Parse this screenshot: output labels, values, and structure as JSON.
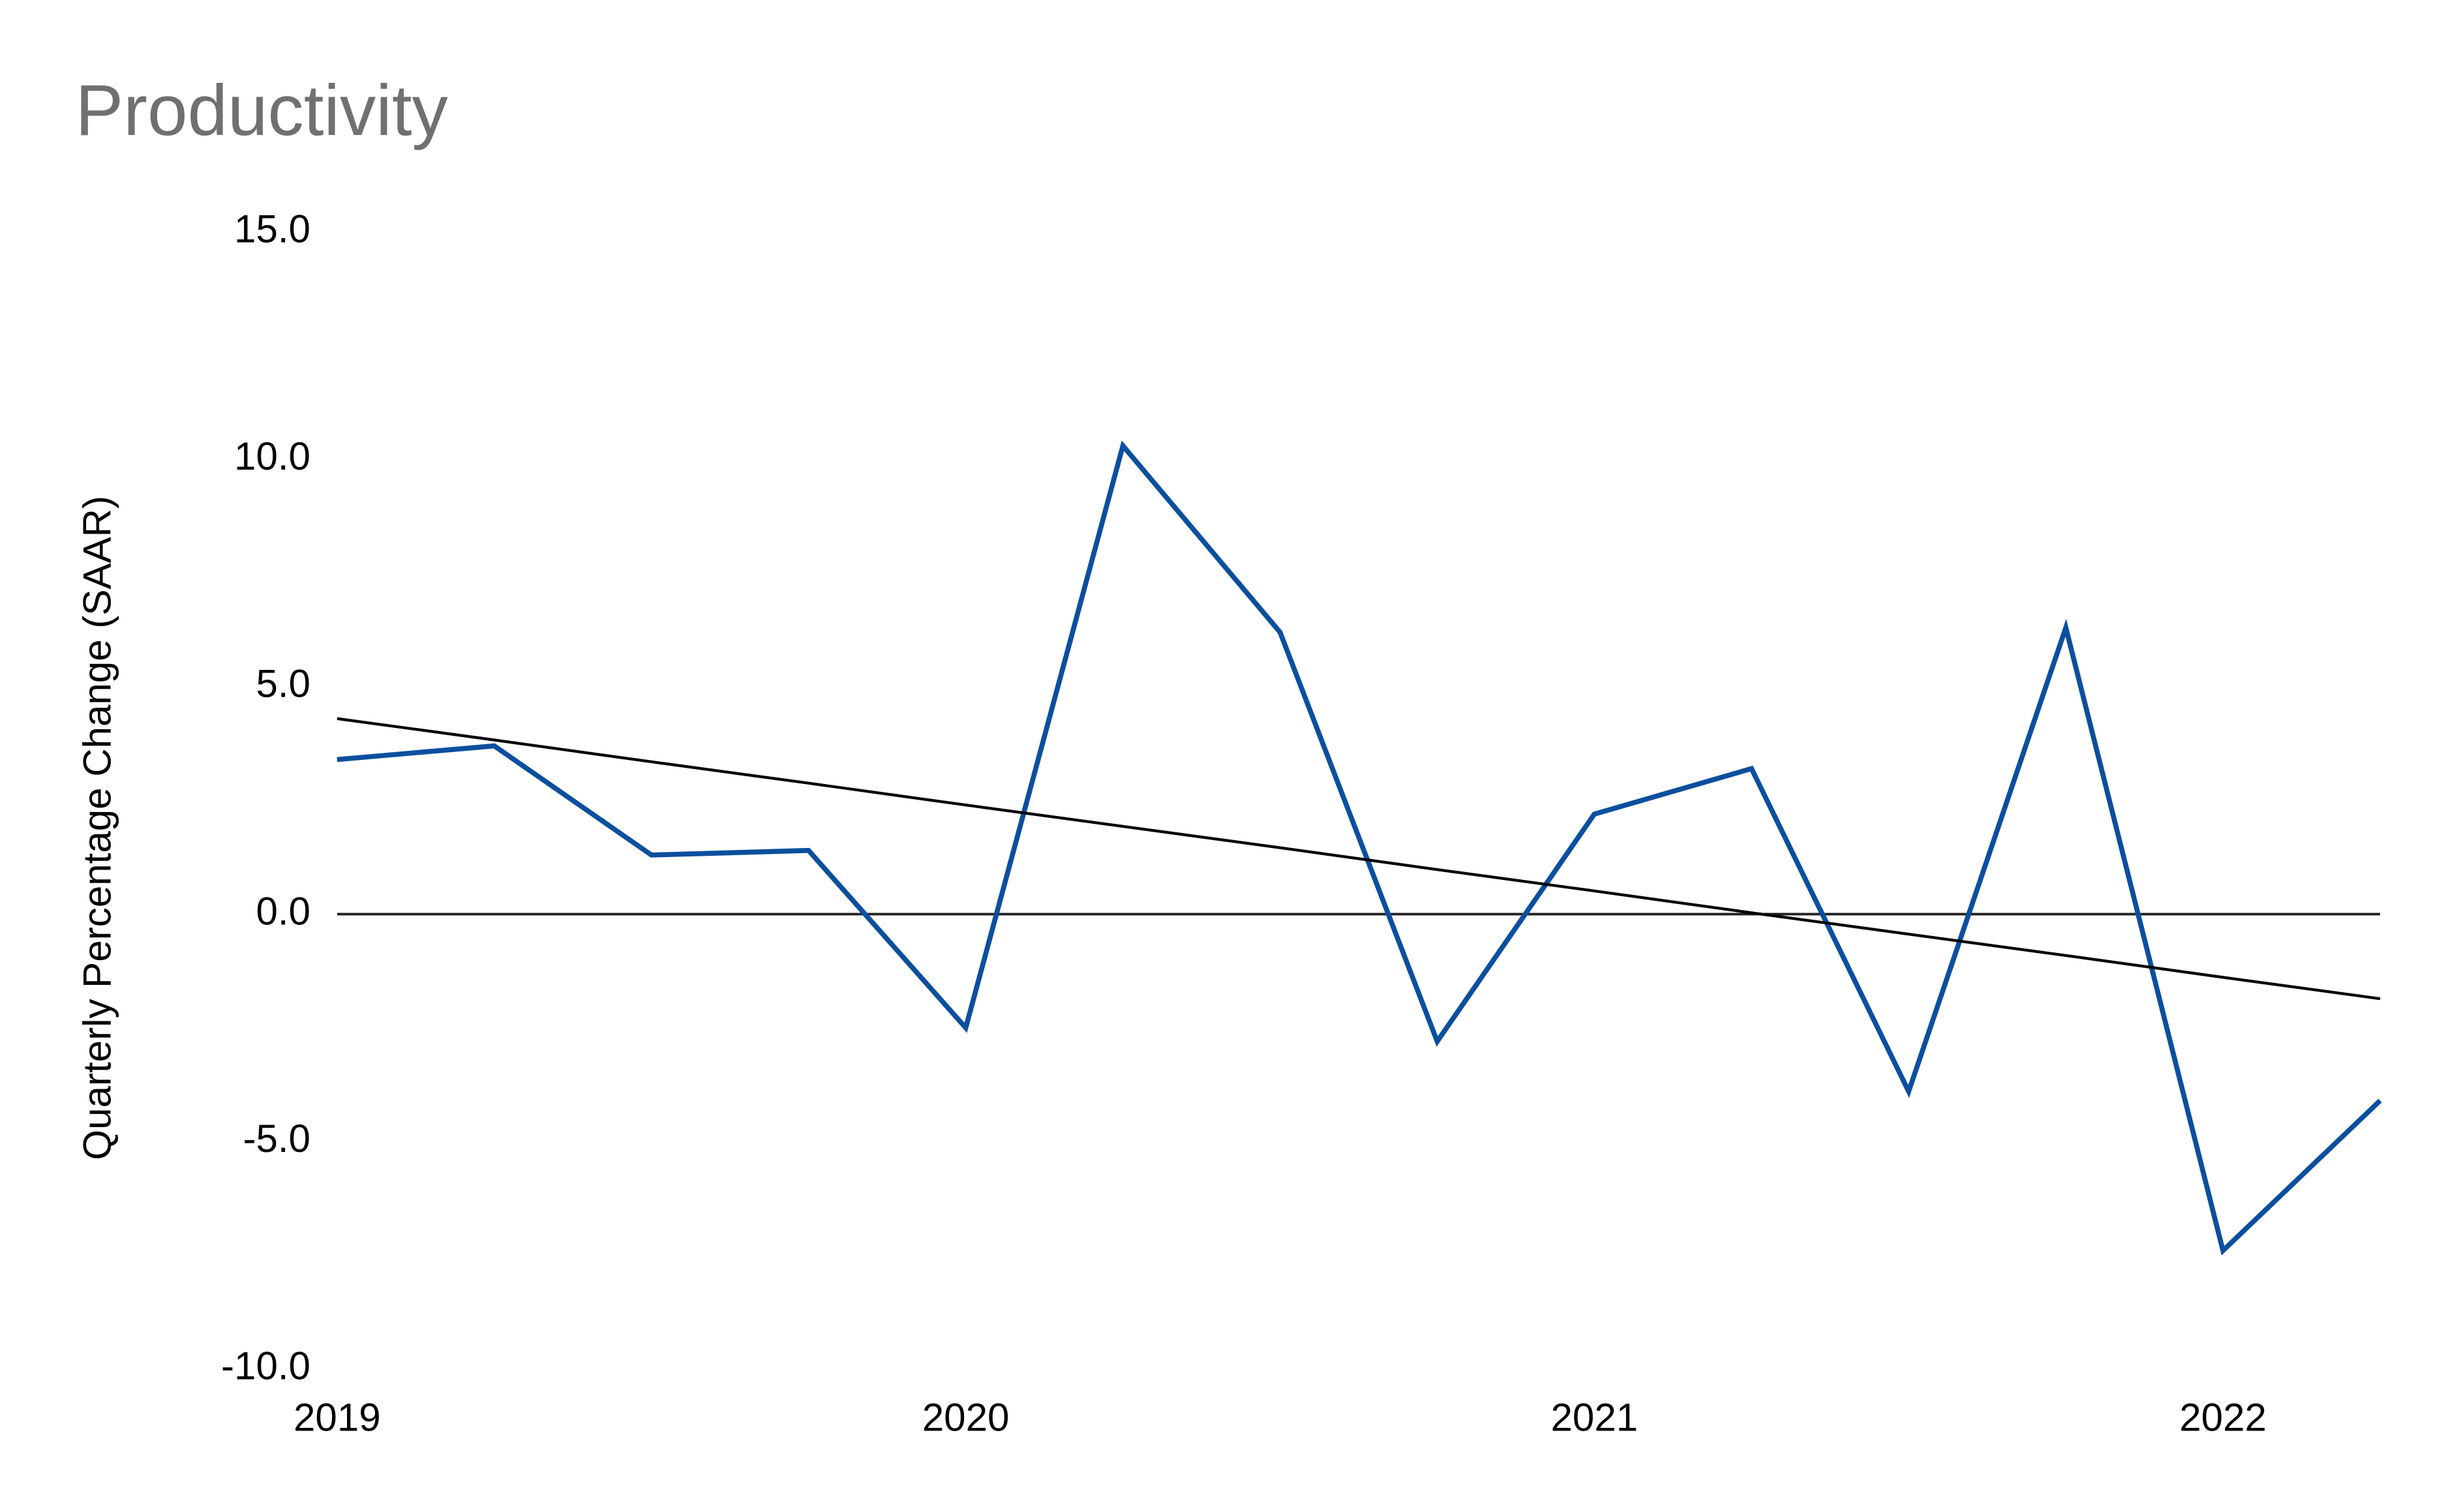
{
  "chart_data": {
    "type": "line",
    "title": "Productivity",
    "y_label": "Quarterly Percentage Change (SAAR)",
    "categories": [
      "2019",
      null,
      null,
      null,
      "2020",
      null,
      null,
      null,
      "2021",
      null,
      null,
      null,
      "2022",
      null
    ],
    "series": [
      {
        "color": "#0b4f9e",
        "width": 3.2,
        "values": [
          3.4,
          3.7,
          1.3,
          1.4,
          -2.5,
          10.3,
          6.2,
          -2.8,
          2.2,
          3.2,
          -3.9,
          6.3,
          -7.4,
          -4.1
        ]
      },
      {
        "color": "#000000",
        "width": 1.8,
        "values": [
          4.3,
          3.83,
          3.35,
          2.88,
          2.4,
          1.93,
          1.46,
          0.98,
          0.51,
          0.03,
          -0.44,
          -0.91,
          -1.39,
          -1.86
        ]
      }
    ],
    "ylim": [
      -10,
      15
    ],
    "yticks": [
      {
        "value": -10,
        "label": "-10.0"
      },
      {
        "value": -5,
        "label": "-5.0"
      },
      {
        "value": 0,
        "label": "0.0"
      },
      {
        "value": 5,
        "label": "5.0"
      },
      {
        "value": 10,
        "label": "10.0"
      },
      {
        "value": 15,
        "label": "15.0"
      }
    ],
    "baseline": 0,
    "grid": false
  }
}
